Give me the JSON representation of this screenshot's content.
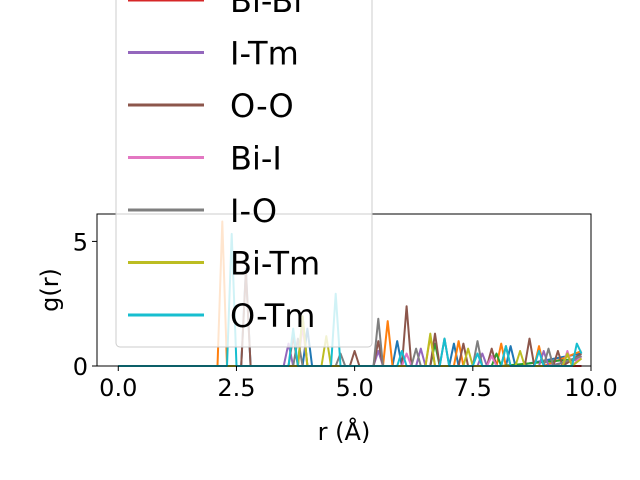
{
  "chart_data": {
    "type": "line",
    "xlabel": "r (Å)",
    "ylabel": "g(r)",
    "xlim": [
      -0.45,
      10.0
    ],
    "ylim": [
      0,
      6.1
    ],
    "xticks": [
      "0.0",
      "2.5",
      "5.0",
      "7.5",
      "10.0"
    ],
    "xtick_values": [
      0,
      2.5,
      5.0,
      7.5,
      10.0
    ],
    "yticks": [
      "0",
      "5"
    ],
    "ytick_values": [
      0,
      5
    ],
    "grid": false,
    "legend_placement": "upper-left",
    "series": [
      {
        "name": "Bi-Bi",
        "color": "#d62728",
        "points": [
          [
            0,
            0
          ],
          [
            9.8,
            0
          ]
        ]
      },
      {
        "name": "I-Tm",
        "color": "#9467bd",
        "points": [
          [
            0,
            0
          ],
          [
            3.5,
            0
          ],
          [
            3.6,
            0.9
          ],
          [
            3.7,
            0
          ],
          [
            5.4,
            0
          ],
          [
            5.5,
            0.6
          ],
          [
            5.6,
            0
          ],
          [
            6.3,
            0
          ],
          [
            6.4,
            0.7
          ],
          [
            6.5,
            0
          ],
          [
            7.6,
            0
          ],
          [
            7.7,
            0.5
          ],
          [
            7.8,
            0
          ],
          [
            8.9,
            0
          ],
          [
            9.0,
            0.6
          ],
          [
            9.1,
            0
          ],
          [
            9.8,
            0.3
          ]
        ]
      },
      {
        "name": "O-O",
        "color": "#8c564b",
        "points": [
          [
            0,
            0
          ],
          [
            2.6,
            0
          ],
          [
            2.7,
            3.8
          ],
          [
            2.8,
            0
          ],
          [
            3.6,
            0
          ],
          [
            3.7,
            1.2
          ],
          [
            3.8,
            0
          ],
          [
            4.9,
            0
          ],
          [
            5.0,
            0.6
          ],
          [
            5.1,
            0
          ],
          [
            5.4,
            0
          ],
          [
            5.5,
            1.0
          ],
          [
            5.6,
            0
          ],
          [
            6.0,
            0
          ],
          [
            6.1,
            2.4
          ],
          [
            6.2,
            0
          ],
          [
            6.6,
            0
          ],
          [
            6.7,
            1.3
          ],
          [
            6.8,
            0
          ],
          [
            7.2,
            0
          ],
          [
            7.3,
            0.9
          ],
          [
            7.4,
            0
          ],
          [
            7.8,
            0
          ],
          [
            7.9,
            0.7
          ],
          [
            8.0,
            0
          ],
          [
            8.6,
            0
          ],
          [
            8.7,
            1.1
          ],
          [
            8.8,
            0
          ],
          [
            9.2,
            0
          ],
          [
            9.3,
            0.6
          ],
          [
            9.4,
            0
          ],
          [
            9.8,
            0.5
          ]
        ]
      },
      {
        "name": "Bi-I",
        "color": "#e377c2",
        "points": [
          [
            0,
            0
          ],
          [
            3.8,
            0
          ],
          [
            3.9,
            1.6
          ],
          [
            4.0,
            0
          ],
          [
            6.0,
            0
          ],
          [
            6.1,
            0.5
          ],
          [
            6.2,
            0
          ],
          [
            7.8,
            0
          ],
          [
            7.9,
            0.4
          ],
          [
            8.0,
            0
          ],
          [
            9.4,
            0
          ],
          [
            9.5,
            0.6
          ],
          [
            9.6,
            0
          ],
          [
            9.8,
            0.4
          ]
        ]
      },
      {
        "name": "I-O",
        "color": "#7f7f7f",
        "points": [
          [
            0,
            0
          ],
          [
            3.7,
            0
          ],
          [
            3.8,
            1.1
          ],
          [
            3.9,
            0
          ],
          [
            4.6,
            0
          ],
          [
            4.7,
            0.5
          ],
          [
            4.8,
            0
          ],
          [
            5.4,
            0
          ],
          [
            5.5,
            1.9
          ],
          [
            5.6,
            0
          ],
          [
            6.2,
            0
          ],
          [
            6.3,
            0.7
          ],
          [
            6.4,
            0
          ],
          [
            6.8,
            0
          ],
          [
            6.9,
            1.1
          ],
          [
            7.0,
            0
          ],
          [
            7.5,
            0
          ],
          [
            7.6,
            1.0
          ],
          [
            7.7,
            0
          ],
          [
            8.1,
            0
          ],
          [
            8.2,
            0.8
          ],
          [
            8.3,
            0
          ],
          [
            9.0,
            0
          ],
          [
            9.1,
            0.7
          ],
          [
            9.2,
            0
          ],
          [
            9.8,
            0.4
          ]
        ]
      },
      {
        "name": "Bi-Tm",
        "color": "#bcbd22",
        "points": [
          [
            0,
            0
          ],
          [
            3.8,
            0
          ],
          [
            3.9,
            2.0
          ],
          [
            4.0,
            0
          ],
          [
            4.3,
            0
          ],
          [
            4.4,
            1.2
          ],
          [
            4.5,
            0
          ],
          [
            6.5,
            0
          ],
          [
            6.6,
            1.3
          ],
          [
            6.7,
            0
          ],
          [
            7.3,
            0
          ],
          [
            7.4,
            0.7
          ],
          [
            7.5,
            0
          ],
          [
            8.4,
            0
          ],
          [
            8.5,
            0.6
          ],
          [
            8.6,
            0
          ],
          [
            9.4,
            0
          ],
          [
            9.5,
            0.5
          ],
          [
            9.6,
            0
          ],
          [
            9.8,
            0.3
          ]
        ]
      },
      {
        "name": "O-Tm",
        "color": "#17becf",
        "points": [
          [
            0,
            0
          ],
          [
            2.3,
            0
          ],
          [
            2.4,
            5.3
          ],
          [
            2.5,
            0
          ],
          [
            3.6,
            0
          ],
          [
            3.7,
            1.5
          ],
          [
            3.8,
            0
          ],
          [
            4.5,
            0
          ],
          [
            4.6,
            2.9
          ],
          [
            4.7,
            0
          ],
          [
            5.9,
            0
          ],
          [
            6.0,
            0.6
          ],
          [
            6.1,
            0
          ],
          [
            6.8,
            0
          ],
          [
            6.9,
            1.1
          ],
          [
            7.0,
            0
          ],
          [
            7.5,
            0
          ],
          [
            7.6,
            0.5
          ],
          [
            7.7,
            0
          ],
          [
            8.1,
            0
          ],
          [
            8.2,
            0.8
          ],
          [
            8.3,
            0
          ],
          [
            8.8,
            0
          ],
          [
            8.9,
            0.6
          ],
          [
            9.0,
            0
          ],
          [
            9.6,
            0
          ],
          [
            9.7,
            0.9
          ],
          [
            9.8,
            0.5
          ]
        ]
      }
    ],
    "hidden_series": [
      {
        "color": "#1f77b4",
        "points": [
          [
            0,
            0
          ],
          [
            2.6,
            0
          ],
          [
            2.7,
            3.9
          ],
          [
            2.8,
            0
          ],
          [
            3.9,
            0
          ],
          [
            4.0,
            1.5
          ],
          [
            4.1,
            0
          ],
          [
            5.8,
            0
          ],
          [
            5.9,
            1.0
          ],
          [
            6.0,
            0
          ],
          [
            7.0,
            0
          ],
          [
            7.1,
            0.9
          ],
          [
            7.2,
            0
          ],
          [
            8.2,
            0
          ],
          [
            8.3,
            0.8
          ],
          [
            8.4,
            0
          ],
          [
            9.8,
            0.5
          ]
        ]
      },
      {
        "color": "#ff7f0e",
        "points": [
          [
            0,
            0
          ],
          [
            2.1,
            0
          ],
          [
            2.2,
            5.8
          ],
          [
            2.3,
            0
          ],
          [
            5.6,
            0
          ],
          [
            5.7,
            1.8
          ],
          [
            5.8,
            0
          ],
          [
            6.5,
            0
          ],
          [
            6.6,
            1.2
          ],
          [
            6.7,
            0
          ],
          [
            7.1,
            0
          ],
          [
            7.2,
            1.0
          ],
          [
            7.3,
            0
          ],
          [
            8.0,
            0
          ],
          [
            8.1,
            0.9
          ],
          [
            8.2,
            0
          ],
          [
            8.8,
            0
          ],
          [
            8.9,
            0.8
          ],
          [
            9.0,
            0
          ],
          [
            9.8,
            0.6
          ]
        ]
      },
      {
        "color": "#2ca02c",
        "points": [
          [
            0,
            0
          ],
          [
            3.8,
            0
          ],
          [
            3.9,
            2.0
          ],
          [
            4.0,
            0
          ],
          [
            6.6,
            0
          ],
          [
            6.7,
            0.9
          ],
          [
            6.8,
            0
          ],
          [
            7.9,
            0
          ],
          [
            8.0,
            0.5
          ],
          [
            8.1,
            0
          ],
          [
            9.8,
            0.3
          ]
        ]
      }
    ]
  }
}
